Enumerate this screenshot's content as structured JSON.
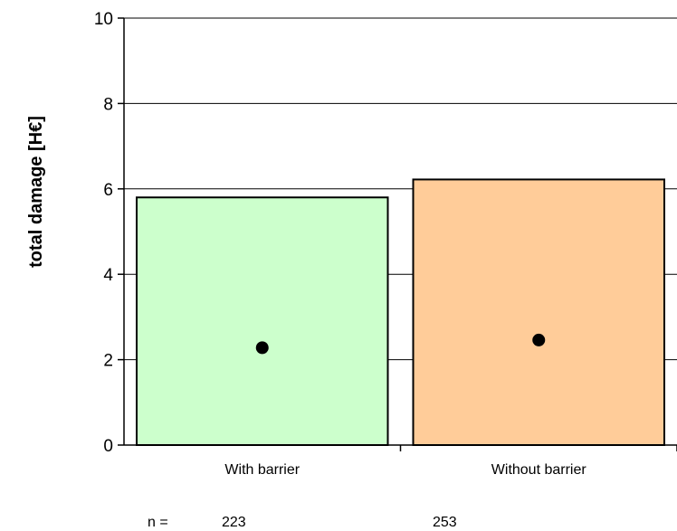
{
  "chart_data": {
    "type": "bar",
    "title": "",
    "xlabel": "",
    "ylabel": "total damage [H€]",
    "ylim": [
      0,
      10
    ],
    "yticks": [
      0,
      2,
      4,
      6,
      8,
      10
    ],
    "grid": true,
    "categories": [
      "With barrier",
      "Without barrier"
    ],
    "values": [
      5.8,
      6.22
    ],
    "markers": [
      2.28,
      2.46
    ],
    "colors": [
      "#ccffcc",
      "#ffcc99"
    ],
    "n_label": "n =",
    "n_values": [
      "223",
      "253"
    ]
  }
}
